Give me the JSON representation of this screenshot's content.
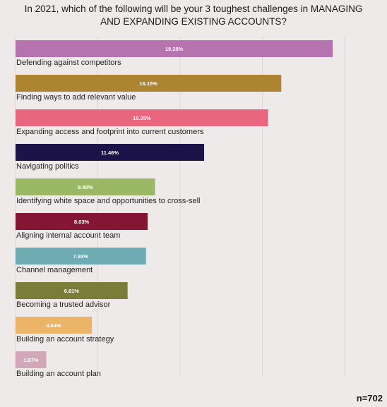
{
  "chart_data": {
    "type": "bar",
    "orientation": "horizontal",
    "title": "In 2021, which of the following will be your 3 toughest challenges in MANAGING\nAND EXPANDING EXISTING ACCOUNTS?",
    "categories": [
      "Defending against competitors",
      "Finding ways to add relevant value",
      "Expanding access and footprint into current customers",
      "Navigating politics",
      "Identifying white space and opportunities to cross-sell",
      "Aligning internal account team",
      "Channel management",
      "Becoming a trusted advisor",
      "Building an account strategy",
      "Building an account plan"
    ],
    "values": [
      19.28,
      16.15,
      15.35,
      11.46,
      8.48,
      8.03,
      7.93,
      6.81,
      4.64,
      1.87
    ],
    "value_labels": [
      "19.28%",
      "16.15%",
      "15.35%",
      "11.46%",
      "8.48%",
      "8.03%",
      "7.93%",
      "6.81%",
      "4.64%",
      "1.87%"
    ],
    "colors": [
      "#b574b0",
      "#ad8530",
      "#e8667e",
      "#1c1449",
      "#9ab865",
      "#841634",
      "#6eabb3",
      "#797d37",
      "#ebb467",
      "#d2a8b8"
    ],
    "xlim": [
      0,
      20
    ],
    "grid": true,
    "legend": "none"
  },
  "footer": {
    "sample_size": "n=702"
  }
}
